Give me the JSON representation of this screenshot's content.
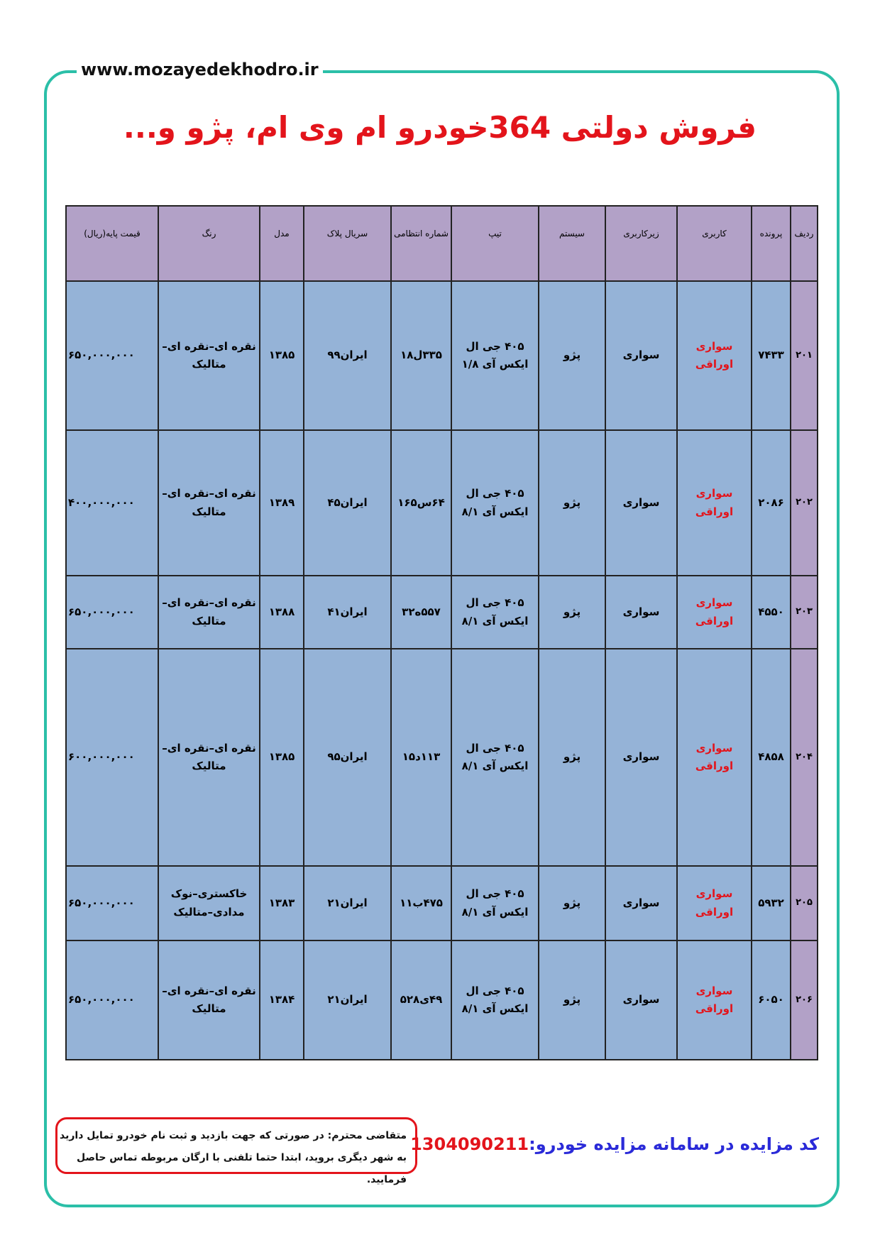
{
  "header": {
    "url": "www.mozayedekhodro.ir",
    "title": "فروش دولتی 364خودرو ام وی ام، پژو و..."
  },
  "table": {
    "headers": [
      "ردیف",
      "پرونده",
      "کاربری",
      "زیرکاربری",
      "سیستم",
      "تیپ",
      "شماره انتظامی",
      "سریال پلاک",
      "مدل",
      "رنگ",
      "قیمت پایه(ریال)"
    ],
    "rows": [
      [
        "۲۰۱",
        "۷۴۳۳",
        "سواری اوراقی",
        "سواری",
        "پژو",
        "۴۰۵ جی ال ایکس آی ۱/۸",
        "۳۳۵ل۱۸",
        "ایران۹۹",
        "۱۳۸۵",
        "نقره ای–نقره ای–متالیک",
        "۶۵۰,۰۰۰,۰۰۰"
      ],
      [
        "۲۰۲",
        "۲۰۸۶",
        "سواری اوراقی",
        "سواری",
        "پژو",
        "۴۰۵ جی ال ایکس آی ۸/۱",
        "۶۴س۱۶۵",
        "ایران۴۵",
        "۱۳۸۹",
        "نقره ای–نقره ای–متالیک",
        "۴۰۰,۰۰۰,۰۰۰"
      ],
      [
        "۲۰۳",
        "۴۵۵۰",
        "سواری اوراقی",
        "سواری",
        "پژو",
        "۴۰۵ جی ال ایکس آی ۸/۱",
        "۵۵۷ه۳۲",
        "ایران۴۱",
        "۱۳۸۸",
        "نقره ای–نقره ای–متالیک",
        "۶۵۰,۰۰۰,۰۰۰"
      ],
      [
        "۲۰۴",
        "۴۸۵۸",
        "سواری اوراقی",
        "سواری",
        "پژو",
        "۴۰۵ جی ال ایکس آی ۸/۱",
        "۱۱۳د۱۵",
        "ایران۹۵",
        "۱۳۸۵",
        "نقره ای–نقره ای–متالیک",
        "۶۰۰,۰۰۰,۰۰۰"
      ],
      [
        "۲۰۵",
        "۵۹۳۲",
        "سواری اوراقی",
        "سواری",
        "پژو",
        "۴۰۵ جی ال ایکس آی ۸/۱",
        "۴۷۵ب۱۱",
        "ایران۲۱",
        "۱۳۸۳",
        "خاکستری–نوک مدادی–متالیک",
        "۶۵۰,۰۰۰,۰۰۰"
      ],
      [
        "۲۰۶",
        "۶۰۵۰",
        "سواری اوراقی",
        "سواری",
        "پژو",
        "۴۰۵ جی ال ایکس آی ۸/۱",
        "۴۹ی۵۲۸",
        "ایران۲۱",
        "۱۳۸۴",
        "نقره ای–نقره ای–متالیک",
        "۶۵۰,۰۰۰,۰۰۰"
      ]
    ]
  },
  "footer": {
    "code_label": "کد مزایده در سامانه مزایده خودرو:",
    "code": "1304090211",
    "notice": [
      "متقاضی محترم: در صورتی که جهت بازدید و ثبت نام خودرو تمایل دارید",
      "به شهر دیگری بروید، ابتدا حتما تلفنی با ارگان مربوطه تماس حاصل فرمایید."
    ]
  }
}
